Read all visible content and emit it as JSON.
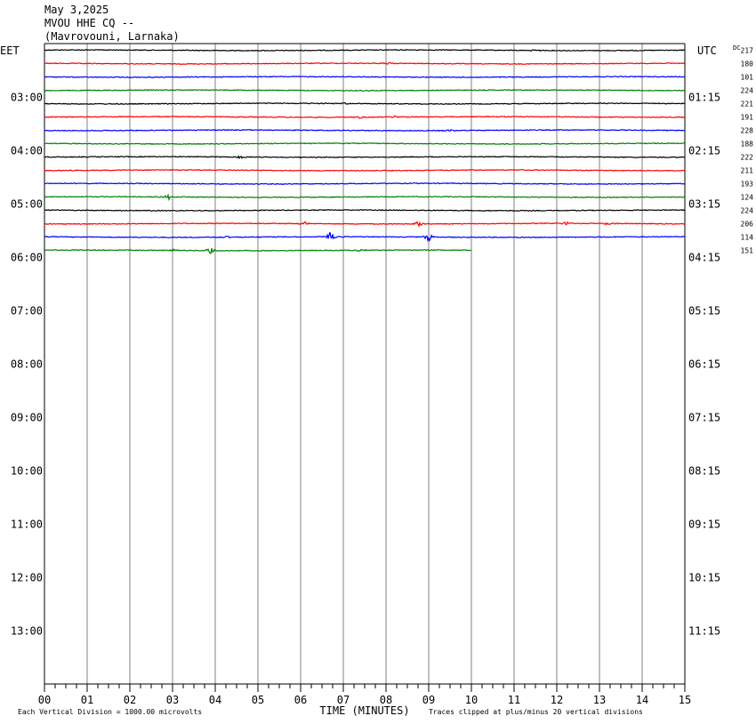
{
  "header": {
    "date": "May 3,2025",
    "station": "MVOU HHE CQ --",
    "location": "(Mavrovouni, Larnaka)"
  },
  "chart_data": {
    "type": "line",
    "left_axis_label": "EET",
    "right_axis_label": "UTC",
    "dc_label": "DC",
    "xlabel": "TIME (MINUTES)",
    "x_ticks": [
      "00",
      "01",
      "02",
      "03",
      "04",
      "05",
      "06",
      "07",
      "08",
      "09",
      "10",
      "11",
      "12",
      "13",
      "14",
      "15"
    ],
    "xlim": [
      0,
      15
    ],
    "hour_labels_left": [
      "03:00",
      "04:00",
      "05:00",
      "06:00",
      "07:00",
      "08:00",
      "09:00",
      "10:00",
      "11:00",
      "12:00",
      "13:00"
    ],
    "hour_labels_right": [
      "01:15",
      "02:15",
      "03:15",
      "04:15",
      "05:15",
      "06:15",
      "07:15",
      "08:15",
      "09:15",
      "10:15",
      "11:15"
    ],
    "footer_left": "Each Vertical Division = 1000.00 microvolts",
    "footer_right": "Traces clipped at plus/minus 20 vertical divisions",
    "trace_colors": [
      "#000000",
      "#ff0000",
      "#0000ff",
      "#008000"
    ],
    "total_rows": 48,
    "traces": [
      {
        "dc": "217",
        "end_minute": 15,
        "events": [
          {
            "minute": 11.5,
            "amp": 1.5
          }
        ]
      },
      {
        "dc": "180",
        "end_minute": 15,
        "events": [
          {
            "minute": 8.0,
            "amp": 1.5
          }
        ]
      },
      {
        "dc": "101",
        "end_minute": 15,
        "events": []
      },
      {
        "dc": "224",
        "end_minute": 15,
        "events": []
      },
      {
        "dc": "221",
        "end_minute": 15,
        "events": [
          {
            "minute": 7.0,
            "amp": 1.5
          }
        ]
      },
      {
        "dc": "191",
        "end_minute": 15,
        "events": [
          {
            "minute": 7.4,
            "amp": 2
          },
          {
            "minute": 8.2,
            "amp": 1.5
          }
        ]
      },
      {
        "dc": "228",
        "end_minute": 15,
        "events": [
          {
            "minute": 9.5,
            "amp": 1.5
          }
        ]
      },
      {
        "dc": "188",
        "end_minute": 15,
        "events": []
      },
      {
        "dc": "222",
        "end_minute": 15,
        "events": [
          {
            "minute": 4.6,
            "amp": 2
          }
        ]
      },
      {
        "dc": "211",
        "end_minute": 15,
        "events": []
      },
      {
        "dc": "193",
        "end_minute": 15,
        "events": []
      },
      {
        "dc": "124",
        "end_minute": 15,
        "events": [
          {
            "minute": 2.9,
            "amp": 3
          }
        ]
      },
      {
        "dc": "224",
        "end_minute": 15,
        "events": []
      },
      {
        "dc": "206",
        "end_minute": 15,
        "events": [
          {
            "minute": 6.05,
            "amp": 4
          },
          {
            "minute": 8.75,
            "amp": 4
          },
          {
            "minute": 12.2,
            "amp": 3
          },
          {
            "minute": 13.2,
            "amp": 2
          }
        ]
      },
      {
        "dc": "114",
        "end_minute": 15,
        "events": [
          {
            "minute": 6.7,
            "amp": 6
          },
          {
            "minute": 9.0,
            "amp": 6
          },
          {
            "minute": 4.3,
            "amp": 2
          }
        ]
      },
      {
        "dc": "151",
        "end_minute": 10,
        "events": [
          {
            "minute": 3.9,
            "amp": 5
          },
          {
            "minute": 3.0,
            "amp": 2
          },
          {
            "minute": 7.4,
            "amp": 2
          }
        ]
      }
    ]
  }
}
